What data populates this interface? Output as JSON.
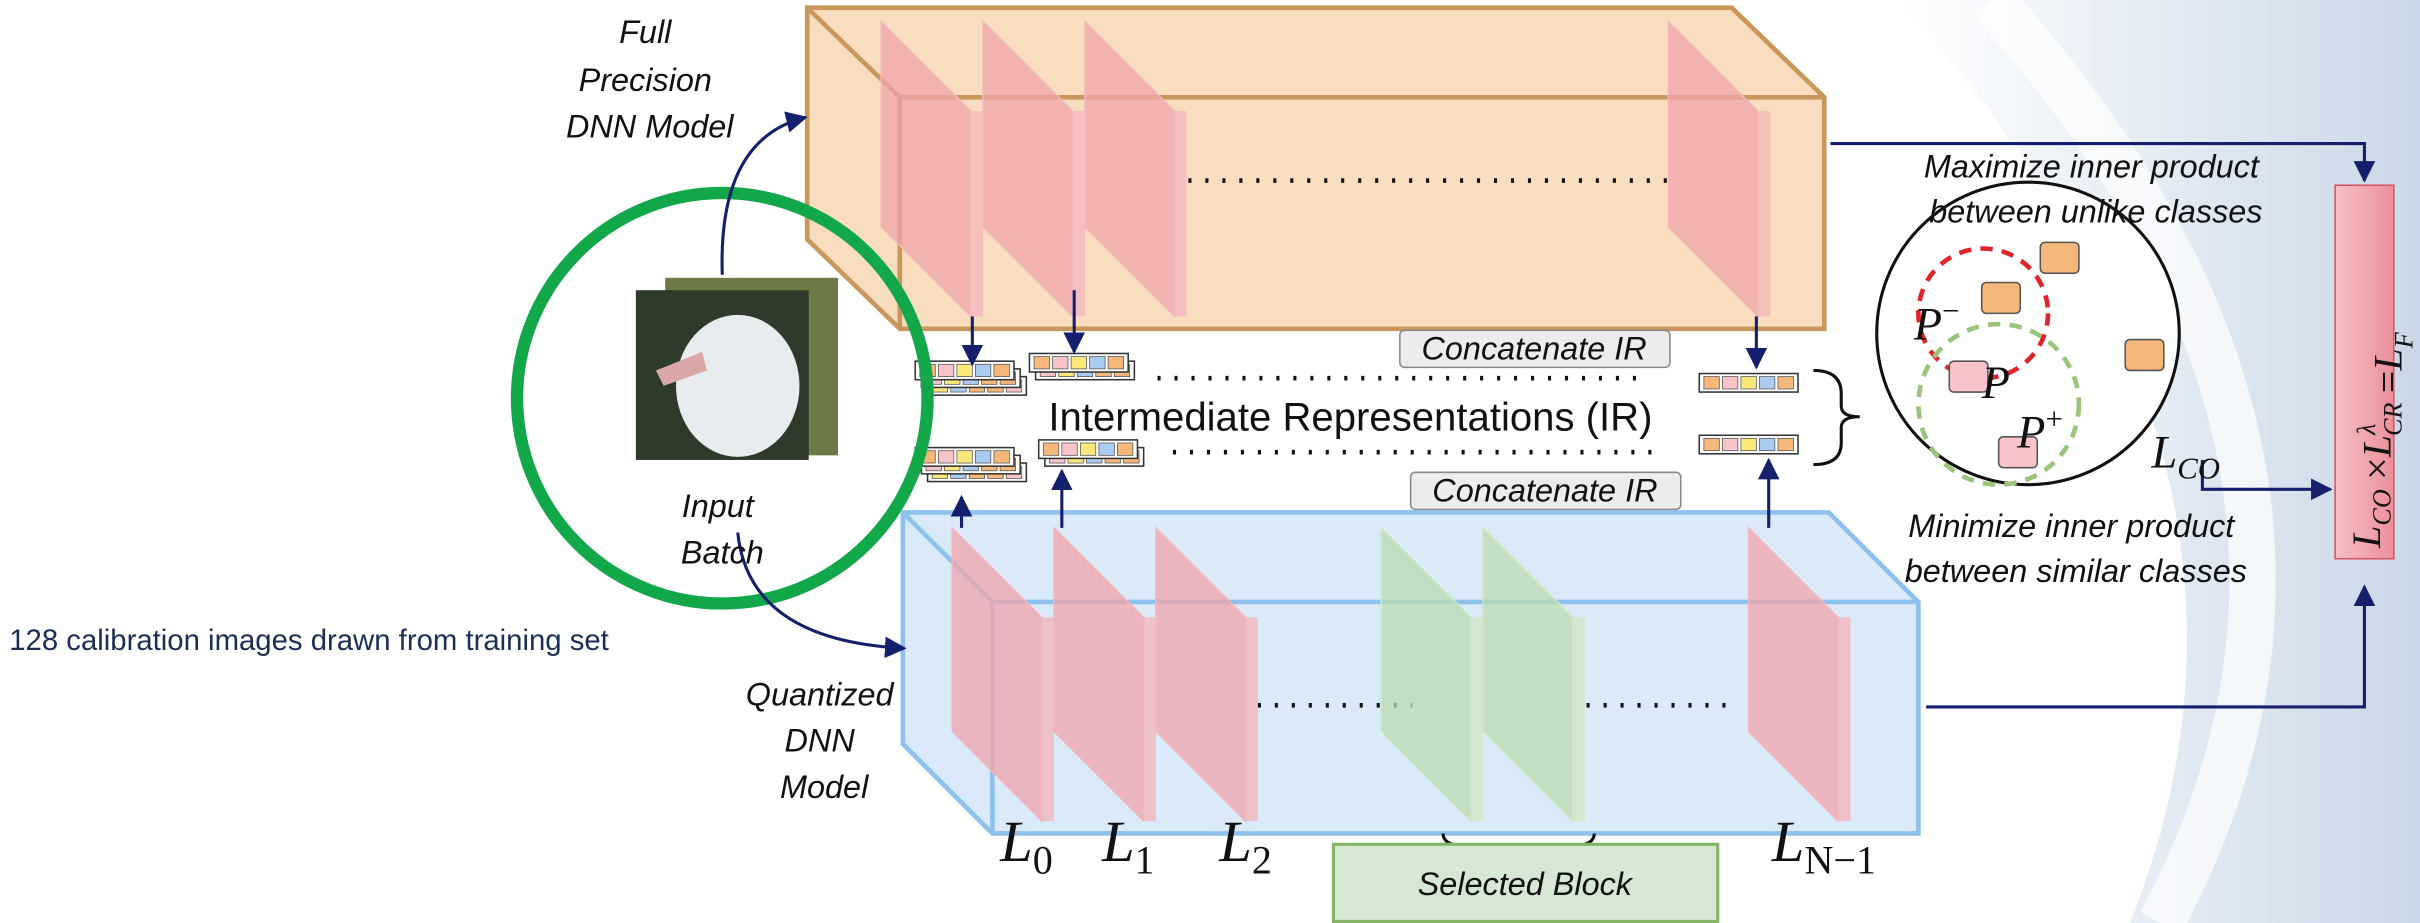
{
  "full_precision_model": {
    "label_lines": [
      "Full",
      "Precision",
      "DNN Model"
    ]
  },
  "input_batch": {
    "label_lines": [
      "Input",
      "Batch"
    ],
    "note": "128 calibration images drawn from training set"
  },
  "quantized_model": {
    "label_lines": [
      "Quantized",
      "DNN",
      "Model"
    ]
  },
  "ir": {
    "title": "Intermediate Representations (IR)",
    "concat_top": "Concatenate IR",
    "concat_bottom": "Concatenate IR"
  },
  "layers": [
    {
      "base": "L",
      "sub": "0"
    },
    {
      "base": "L",
      "sub": "1"
    },
    {
      "base": "L",
      "sub": "2"
    },
    {
      "base": "L",
      "sub": "N−1"
    }
  ],
  "selected_block": "Selected Block",
  "contrastive": {
    "maximize_lines": [
      "Maximize inner product",
      "between unlike classes"
    ],
    "minimize_lines": [
      "Minimize inner product",
      "between similar classes"
    ],
    "p_minus": {
      "base": "P",
      "sup": "−"
    },
    "p": "P",
    "p_plus": {
      "base": "P",
      "sup": "+"
    },
    "loss": {
      "base": "L",
      "sub": "CO"
    }
  },
  "loss_formula": [
    {
      "base": "L",
      "sub": "CO"
    },
    {
      "op": "×"
    },
    {
      "base": "L",
      "sub": "CR",
      "sup": "λ"
    },
    {
      "op": "="
    },
    {
      "base": "L",
      "sub": "F"
    }
  ]
}
